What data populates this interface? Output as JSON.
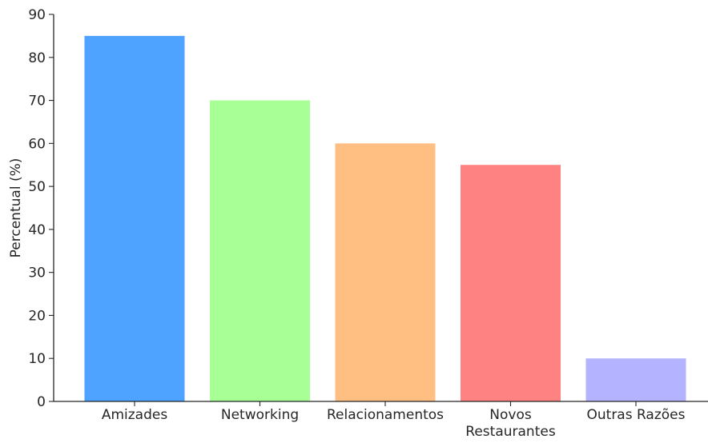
{
  "chart_data": {
    "type": "bar",
    "title": "",
    "xlabel": "",
    "ylabel": "Percentual (%)",
    "ylim": [
      0,
      90
    ],
    "yticks": [
      0,
      10,
      20,
      30,
      40,
      50,
      60,
      70,
      80,
      90
    ],
    "grid": false,
    "categories": [
      [
        "Amizades"
      ],
      [
        "Networking"
      ],
      [
        "Relacionamentos"
      ],
      [
        "Novos",
        "Restaurantes"
      ],
      [
        "Outras Razões"
      ]
    ],
    "values": [
      85,
      70,
      60,
      55,
      10
    ],
    "colors": [
      "#4da3ff",
      "#a8ff96",
      "#ffbe82",
      "#ff8282",
      "#b3b3ff"
    ]
  }
}
